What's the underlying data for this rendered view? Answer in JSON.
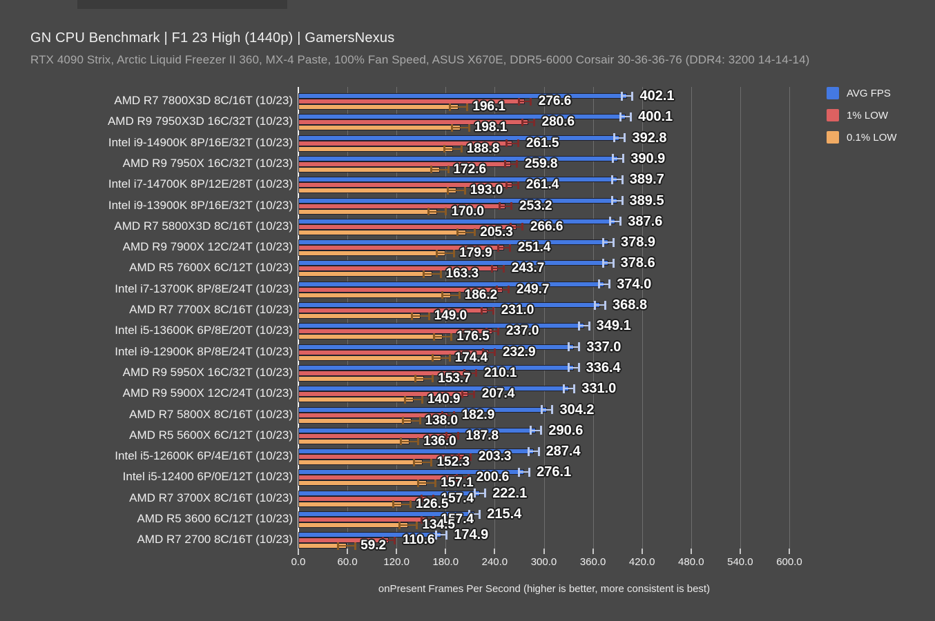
{
  "header": {
    "title": "GN CPU Benchmark | F1 23 High (1440p) | GamersNexus",
    "subtitle": "RTX 4090 Strix, Arctic Liquid Freezer II 360, MX-4 Paste, 100% Fan Speed, ASUS X670E, DDR5-6000 Corsair 30-36-36-76 (DDR4: 3200 14-14-14)"
  },
  "colors": {
    "background": "#484848",
    "top_bar": "#3b3b3b",
    "grid": "#6e6e6e",
    "axis_line": "#f2f2f2",
    "value_text": "#ffffff"
  },
  "chart_data": {
    "type": "bar",
    "orientation": "horizontal",
    "title": "GN CPU Benchmark | F1 23 High (1440p) | GamersNexus",
    "xlabel": "onPresent Frames Per Second (higher is better, more consistent is best)",
    "xlim": [
      0,
      600
    ],
    "xticks": [
      0,
      60,
      120,
      180,
      240,
      300,
      360,
      420,
      480,
      540,
      600
    ],
    "grid": true,
    "legend_position": "top-right",
    "error_bars": true,
    "categories": [
      "AMD R7 7800X3D 8C/16T (10/23)",
      "AMD R9 7950X3D 16C/32T (10/23)",
      "Intel i9-14900K 8P/16E/32T (10/23)",
      "AMD R9 7950X 16C/32T (10/23)",
      "Intel i7-14700K 8P/12E/28T (10/23)",
      "Intel i9-13900K 8P/16E/32T (10/23)",
      "AMD R7 5800X3D 8C/16T (10/23)",
      "AMD R9 7900X 12C/24T (10/23)",
      "AMD R5 7600X 6C/12T (10/23)",
      "Intel i7-13700K 8P/8E/24T (10/23)",
      "AMD R7 7700X 8C/16T (10/23)",
      "Intel i5-13600K 6P/8E/20T (10/23)",
      "Intel i9-12900K 8P/8E/24T (10/23)",
      "AMD R9 5950X 16C/32T (10/23)",
      "AMD R9 5900X 12C/24T (10/23)",
      "AMD R7 5800X 8C/16T (10/23)",
      "AMD R5 5600X 6C/12T (10/23)",
      "Intel i5-12600K 6P/4E/16T (10/23)",
      "Intel i5-12400 6P/0E/12T (10/23)",
      "AMD R7 3700X 8C/16T (10/23)",
      "AMD R5 3600 6C/12T (10/23)",
      "AMD R7 2700 8C/16T (10/23)"
    ],
    "series": [
      {
        "name": "AVG FPS",
        "color": "#4479e2",
        "whisker_color": "#b9c9ee",
        "values": [
          402.1,
          400.1,
          392.8,
          390.9,
          389.7,
          389.5,
          387.6,
          378.9,
          378.6,
          374.0,
          368.8,
          349.1,
          337.0,
          336.4,
          331.0,
          304.2,
          290.6,
          287.4,
          276.1,
          222.1,
          215.4,
          174.9
        ]
      },
      {
        "name": "1% LOW",
        "color": "#dd6161",
        "whisker_color": "#7e2a2a",
        "values": [
          276.6,
          280.6,
          261.5,
          259.8,
          261.4,
          253.2,
          266.6,
          251.4,
          243.7,
          249.7,
          231.0,
          237.0,
          232.9,
          210.1,
          207.4,
          182.9,
          187.8,
          203.3,
          200.6,
          157.4,
          157.4,
          110.6
        ]
      },
      {
        "name": "0.1% LOW",
        "color": "#f1ab64",
        "whisker_color": "#8a5a24",
        "values": [
          196.1,
          198.1,
          188.8,
          172.6,
          193.0,
          170.0,
          205.3,
          179.9,
          163.3,
          186.2,
          149.0,
          176.5,
          174.4,
          153.7,
          140.9,
          138.0,
          136.0,
          152.3,
          157.1,
          126.5,
          134.5,
          59.2
        ]
      }
    ]
  }
}
